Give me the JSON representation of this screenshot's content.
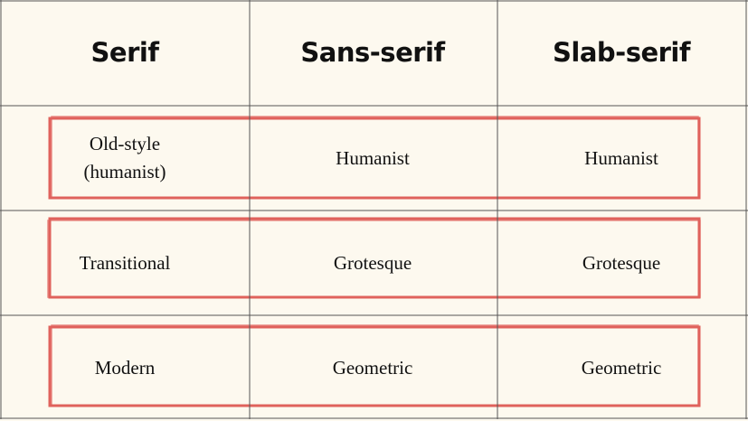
{
  "table": {
    "header": [
      "Serif",
      "Sans-serif",
      "Slab-serif"
    ],
    "rows": [
      [
        "Old-style (humanist)",
        "Humanist",
        "Humanist"
      ],
      [
        "Transitional",
        "Grotesque",
        "Grotesque"
      ],
      [
        "Modern",
        "Geometric",
        "Geometric"
      ]
    ]
  }
}
